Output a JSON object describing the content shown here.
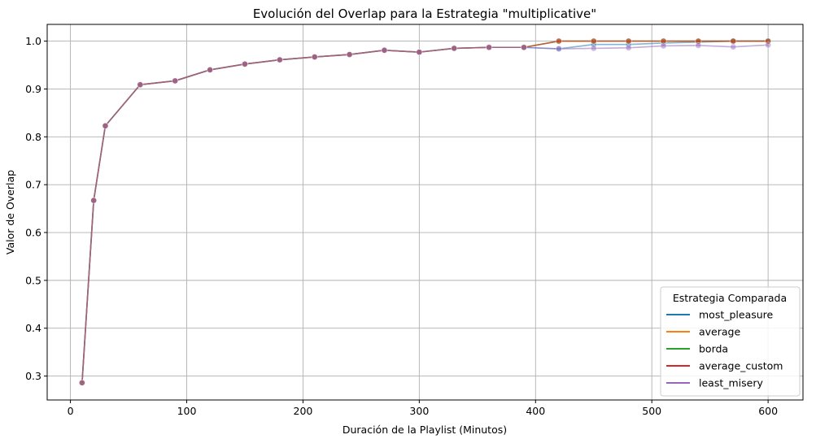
{
  "chart_data": {
    "type": "line",
    "title": "Evolución del Overlap para la Estrategia \"multiplicative\"",
    "xlabel": "Duración de la Playlist (Minutos)",
    "ylabel": "Valor de Overlap",
    "xlim": [
      -20,
      630
    ],
    "ylim": [
      0.25,
      1.035
    ],
    "xticks": [
      0,
      100,
      200,
      300,
      400,
      500,
      600
    ],
    "yticks": [
      0.3,
      0.4,
      0.5,
      0.6,
      0.7,
      0.8,
      0.9,
      1.0
    ],
    "grid": true,
    "legend": {
      "title": "Estrategia Comparada",
      "placement": "lower-right"
    },
    "x": [
      10,
      20,
      30,
      60,
      90,
      120,
      150,
      180,
      210,
      240,
      270,
      300,
      330,
      360,
      390,
      420,
      450,
      480,
      510,
      540,
      570,
      600
    ],
    "series": [
      {
        "name": "most_pleasure",
        "color": "#1f77b4",
        "values": [
          0.286,
          0.667,
          0.823,
          0.909,
          0.917,
          0.94,
          0.952,
          0.961,
          0.967,
          0.972,
          0.981,
          0.977,
          0.985,
          0.987,
          0.987,
          0.984,
          0.993,
          0.993,
          0.996,
          0.998,
          1.0,
          1.0
        ]
      },
      {
        "name": "average",
        "color": "#ff7f0e",
        "values": [
          0.286,
          0.667,
          0.823,
          0.909,
          0.917,
          0.94,
          0.952,
          0.961,
          0.967,
          0.972,
          0.981,
          0.977,
          0.985,
          0.987,
          0.987,
          1.0,
          1.0,
          1.0,
          1.0,
          1.0,
          1.0,
          1.0
        ]
      },
      {
        "name": "borda",
        "color": "#2ca02c",
        "values": [
          0.286,
          0.667,
          0.823,
          0.909,
          0.917,
          0.94,
          0.952,
          0.961,
          0.967,
          0.972,
          0.981,
          0.977,
          0.985,
          0.987,
          0.987,
          1.0,
          1.0,
          1.0,
          1.0,
          1.0,
          1.0,
          1.0
        ]
      },
      {
        "name": "average_custom",
        "color": "#d62728",
        "values": [
          0.286,
          0.667,
          0.823,
          0.909,
          0.917,
          0.94,
          0.952,
          0.961,
          0.967,
          0.972,
          0.981,
          0.977,
          0.985,
          0.987,
          0.987,
          1.0,
          1.0,
          1.0,
          1.0,
          1.0,
          1.0,
          1.0
        ]
      },
      {
        "name": "least_misery",
        "color": "#9467bd",
        "values": [
          0.286,
          0.667,
          0.823,
          0.909,
          0.917,
          0.94,
          0.952,
          0.961,
          0.967,
          0.972,
          0.981,
          0.977,
          0.985,
          0.987,
          0.987,
          0.984,
          0.985,
          0.986,
          0.99,
          0.991,
          0.988,
          0.992
        ]
      }
    ],
    "overlay_colors": [
      "#e2a3a3",
      "#96607a"
    ]
  }
}
